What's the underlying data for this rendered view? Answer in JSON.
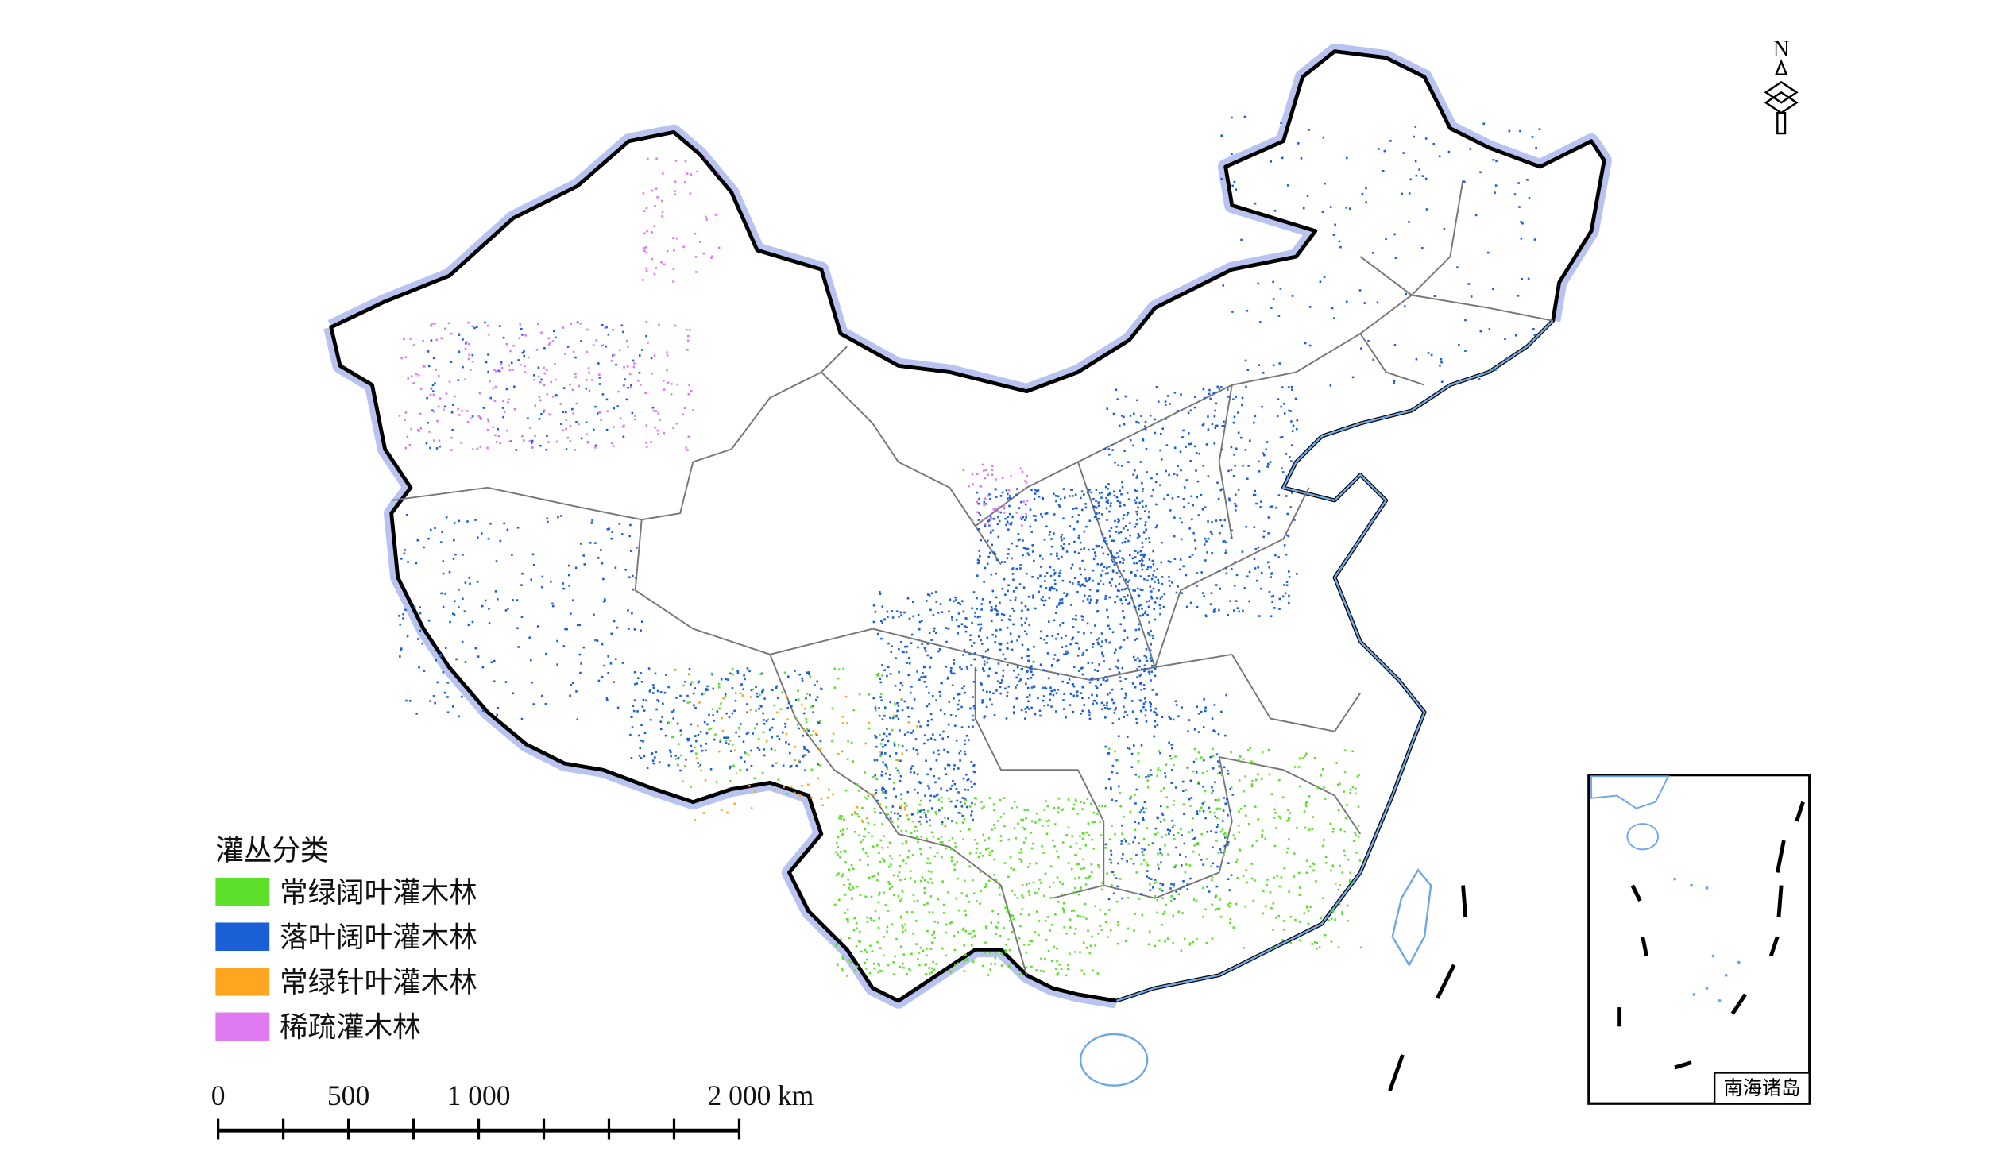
{
  "legend": {
    "title": "灌丛分类",
    "items": [
      {
        "label": "常绿阔叶灌木林",
        "color": "#5ee02a"
      },
      {
        "label": "落叶阔叶灌木林",
        "color": "#1a5fd6"
      },
      {
        "label": "常绿针叶灌木林",
        "color": "#ffa51f"
      },
      {
        "label": "稀疏灌木林",
        "color": "#e07af0"
      }
    ]
  },
  "scale_bar": {
    "ticks": [
      0,
      250,
      500,
      750,
      1000,
      1250,
      1500,
      1750,
      2000
    ],
    "labels": [
      {
        "value": 0,
        "label": "0"
      },
      {
        "value": 500,
        "label": "500"
      },
      {
        "value": 1000,
        "label": "1 000"
      },
      {
        "value": 2000,
        "label": "2 000"
      }
    ],
    "unit": "km"
  },
  "north_arrow": "N",
  "inset": {
    "label": "南海诸岛"
  }
}
